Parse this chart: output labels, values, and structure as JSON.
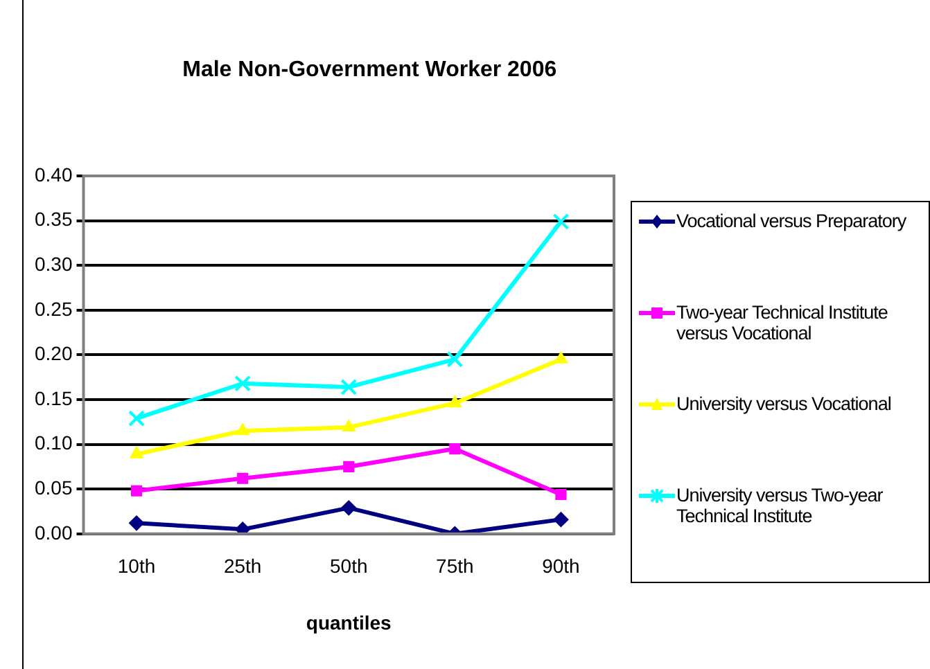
{
  "chart_data": {
    "type": "line",
    "title": "Male Non-Government Worker 2006",
    "xlabel": "quantiles",
    "categories": [
      "10th",
      "25th",
      "50th",
      "75th",
      "90th"
    ],
    "series": [
      {
        "name": "Vocational versus Preparatory",
        "color": "#000080",
        "marker": "diamond",
        "values": [
          0.012,
          0.005,
          0.029,
          0.0,
          0.016
        ]
      },
      {
        "name": "Two-year Technical Institute versus Vocational",
        "color": "#ff00ff",
        "marker": "square",
        "values": [
          0.048,
          0.062,
          0.075,
          0.095,
          0.044
        ]
      },
      {
        "name": "University versus Vocational",
        "color": "#ffff00",
        "marker": "triangle",
        "values": [
          0.089,
          0.115,
          0.119,
          0.146,
          0.195
        ]
      },
      {
        "name": "University versus Two-year Technical Institute",
        "color": "#00ffff",
        "marker": "cross",
        "values": [
          0.129,
          0.168,
          0.164,
          0.195,
          0.349
        ]
      }
    ],
    "ylim": [
      0,
      0.4
    ],
    "yticks": [
      {
        "value": 0,
        "label": "0.00"
      },
      {
        "value": 0.05,
        "label": "0.05"
      },
      {
        "value": 0.1,
        "label": "0.10"
      },
      {
        "value": 0.15,
        "label": "0.15"
      },
      {
        "value": 0.2,
        "label": "0.20"
      },
      {
        "value": 0.25,
        "label": "0.25"
      },
      {
        "value": 0.3,
        "label": "0.30"
      },
      {
        "value": 0.35,
        "label": "0.35"
      },
      {
        "value": 0.4,
        "label": "0.40"
      }
    ],
    "grid": "y",
    "legend": "right"
  }
}
